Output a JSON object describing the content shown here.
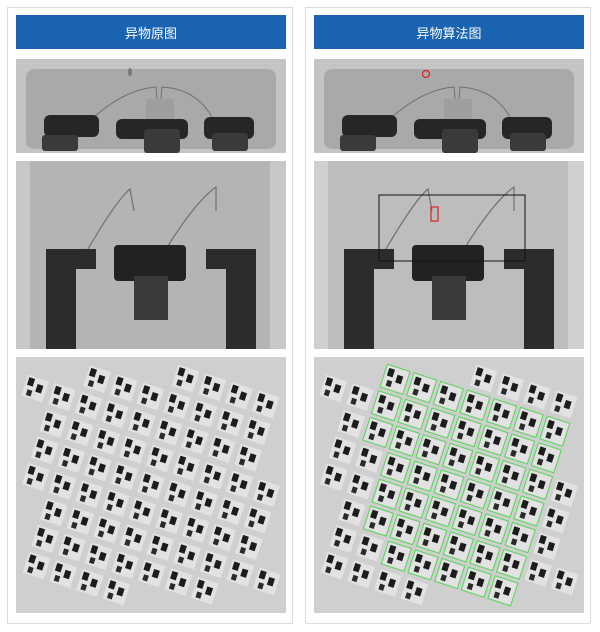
{
  "panels": [
    {
      "title": "异物原图",
      "variant": "original"
    },
    {
      "title": "异物算法图",
      "variant": "algorithm"
    }
  ],
  "colors": {
    "header": "#1a63b0",
    "defect_marker": "#e02020",
    "region_box": "#111111",
    "detection_box": "#3ddc3d"
  }
}
